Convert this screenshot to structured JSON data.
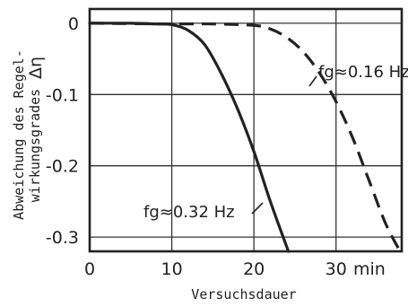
{
  "chart_data": {
    "type": "line",
    "xlabel": "Versuchsdauer",
    "xunit": "min",
    "ylabel_line1": "Abweichung des Regel-",
    "ylabel_line2": "wirkungsgrades",
    "ylabel_symbol": "Δη",
    "xlim": [
      0,
      38
    ],
    "ylim": [
      -0.32,
      0.02
    ],
    "x_ticks": [
      0,
      10,
      20,
      30
    ],
    "x_tick_labels": [
      "0",
      "10",
      "20",
      "30"
    ],
    "y_ticks": [
      0,
      -0.1,
      -0.2,
      -0.3
    ],
    "y_tick_labels": [
      "0",
      "-0.1",
      "-0.2",
      "-0.3"
    ],
    "grid": true,
    "series": [
      {
        "name": "fg≈0.32 Hz",
        "style": "solid",
        "x": [
          0,
          5,
          8,
          10,
          12,
          14,
          16,
          18,
          20,
          22,
          24.2
        ],
        "y": [
          0,
          0,
          -0.001,
          -0.002,
          -0.01,
          -0.03,
          -0.07,
          -0.12,
          -0.18,
          -0.25,
          -0.32
        ]
      },
      {
        "name": "fg≈0.16 Hz",
        "style": "dashed",
        "x": [
          0,
          10,
          15,
          20,
          22,
          24,
          26,
          28,
          30,
          32,
          34,
          36,
          37.8
        ],
        "y": [
          0,
          -0.001,
          -0.001,
          -0.003,
          -0.008,
          -0.02,
          -0.04,
          -0.07,
          -0.11,
          -0.16,
          -0.22,
          -0.28,
          -0.32
        ]
      }
    ],
    "annotations": [
      "fg≈0.16 Hz",
      "fg≈0.32 Hz"
    ]
  }
}
